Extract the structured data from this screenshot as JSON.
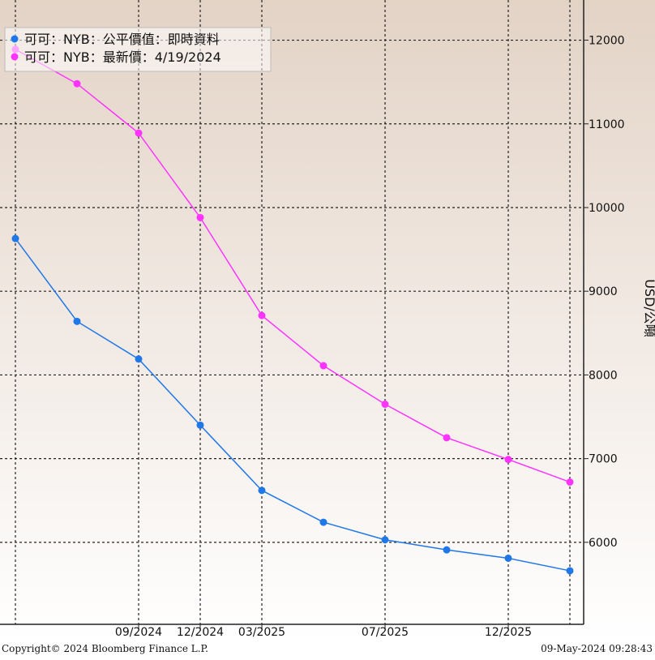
{
  "chart_data": {
    "type": "line",
    "categories": [
      null,
      null,
      "09/2024",
      "12/2024",
      "03/2025",
      null,
      "07/2025",
      null,
      "12/2025",
      null
    ],
    "series": [
      {
        "name": "可可：NYB：公平價值：即時資料",
        "color": "#1f77e8",
        "values": [
          9630,
          8640,
          8190,
          7400,
          6620,
          6240,
          6030,
          5910,
          5810,
          5660
        ]
      },
      {
        "name": "可可：NYB：最新價：4/19/2024",
        "color": "#ff33ff",
        "values": [
          11890,
          11480,
          10890,
          9880,
          8710,
          8110,
          7650,
          7250,
          6990,
          6720
        ]
      }
    ],
    "ylim": [
      5020,
      12480
    ],
    "yticks": [
      6000,
      7000,
      8000,
      9000,
      10000,
      11000,
      12000
    ],
    "y_label": "USD/公噸",
    "grid": true,
    "legend": "top-left",
    "footer_left": "Copyright© 2024 Bloomberg Finance L.P.",
    "footer_right": "09-May-2024 09:28:43"
  }
}
